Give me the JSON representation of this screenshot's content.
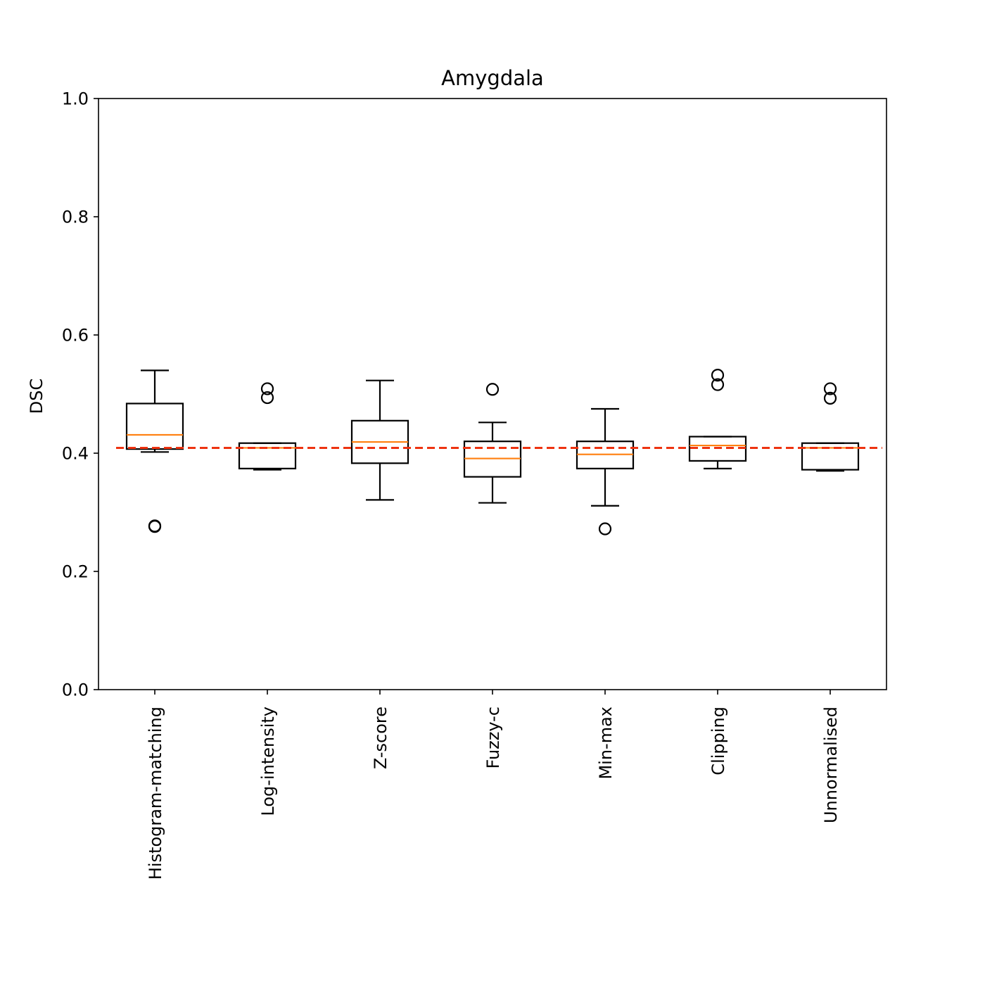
{
  "chart_data": {
    "type": "boxplot",
    "title": "Amygdala",
    "xlabel": "",
    "ylabel": "DSC",
    "ylim": [
      0,
      1
    ],
    "yticks": [
      "0.0",
      "0.2",
      "0.4",
      "0.6",
      "0.8",
      "1.0"
    ],
    "grid": false,
    "reference_line": {
      "value": 0.409,
      "color": "#ee3311",
      "style": "dashed"
    },
    "colors": {
      "box": "#000000",
      "median": "#ff7f0e",
      "flier": "#000000"
    },
    "categories": [
      "Histogram-matching",
      "Log-intensity",
      "Z-score",
      "Fuzzy-c",
      "Min-max",
      "Clipping",
      "Unnormalised"
    ],
    "boxes": [
      {
        "whisker_low": 0.402,
        "q1": 0.407,
        "median": 0.431,
        "q3": 0.484,
        "whisker_high": 0.54,
        "outliers": [
          0.276,
          0.277
        ]
      },
      {
        "whisker_low": 0.372,
        "q1": 0.374,
        "median": 0.409,
        "q3": 0.417,
        "whisker_high": 0.417,
        "outliers": [
          0.494,
          0.509
        ]
      },
      {
        "whisker_low": 0.321,
        "q1": 0.383,
        "median": 0.419,
        "q3": 0.455,
        "whisker_high": 0.523,
        "outliers": []
      },
      {
        "whisker_low": 0.316,
        "q1": 0.36,
        "median": 0.391,
        "q3": 0.42,
        "whisker_high": 0.452,
        "outliers": [
          0.508
        ]
      },
      {
        "whisker_low": 0.311,
        "q1": 0.374,
        "median": 0.398,
        "q3": 0.42,
        "whisker_high": 0.475,
        "outliers": [
          0.272
        ]
      },
      {
        "whisker_low": 0.374,
        "q1": 0.387,
        "median": 0.413,
        "q3": 0.428,
        "whisker_high": 0.428,
        "outliers": [
          0.516,
          0.532
        ]
      },
      {
        "whisker_low": 0.37,
        "q1": 0.372,
        "median": 0.409,
        "q3": 0.417,
        "whisker_high": 0.417,
        "outliers": [
          0.493,
          0.509
        ]
      }
    ]
  }
}
